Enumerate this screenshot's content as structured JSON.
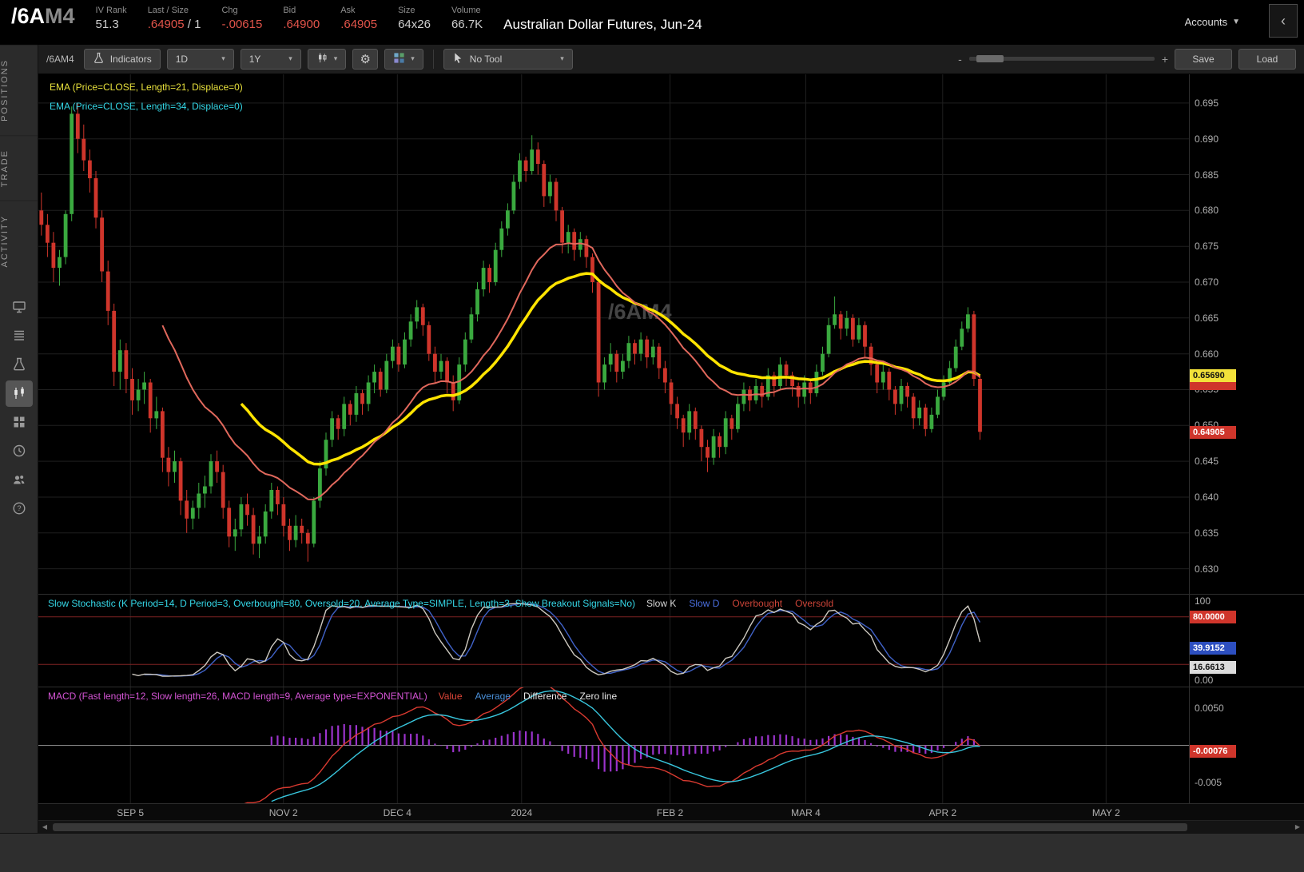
{
  "header": {
    "symbol": "/6A",
    "symbol_month": "M4",
    "fields": [
      {
        "label": "IV Rank",
        "value": "51.3",
        "color": "#cfcfcf"
      },
      {
        "label": "Last / Size",
        "value": ".64905",
        "suffix": " / 1",
        "color": "#e2544a"
      },
      {
        "label": "Chg",
        "value": "-.00615",
        "color": "#e2544a"
      },
      {
        "label": "Bid",
        "value": ".64900",
        "color": "#e2544a"
      },
      {
        "label": "Ask",
        "value": ".64905",
        "color": "#e2544a"
      },
      {
        "label": "Size",
        "value": "64x26",
        "color": "#cfcfcf"
      },
      {
        "label": "Volume",
        "value": "66.7K",
        "color": "#cfcfcf"
      }
    ],
    "title": "Australian Dollar Futures, Jun-24",
    "accounts_label": "Accounts"
  },
  "sidebar": {
    "tabs": [
      {
        "label": "POSITIONS"
      },
      {
        "label": "TRADE"
      },
      {
        "label": "ACTIVITY"
      }
    ],
    "icons": [
      {
        "name": "monitor-icon",
        "active": false
      },
      {
        "name": "ladder-icon",
        "active": false
      },
      {
        "name": "beaker-icon",
        "active": false
      },
      {
        "name": "chart-icon",
        "active": true
      },
      {
        "name": "grid-icon",
        "active": false
      },
      {
        "name": "clock-icon",
        "active": false
      },
      {
        "name": "users-icon",
        "active": false
      },
      {
        "name": "help-icon",
        "active": false
      }
    ]
  },
  "toolbar": {
    "symbol": "/6AM4",
    "indicators_label": "Indicators",
    "timeframe": "1D",
    "range": "1Y",
    "tool_label": "No Tool",
    "zoom_out_label": "-",
    "zoom_in_label": "+",
    "save_label": "Save",
    "load_label": "Load"
  },
  "studies": {
    "ema1_label": "EMA (Price=CLOSE, Length=21, Displace=0)",
    "ema1_color": "#e8e13c",
    "ema2_label": "EMA (Price=CLOSE, Length=34, Displace=0)",
    "ema2_color": "#35d8e8",
    "stoch_label": "Slow Stochastic (K Period=14, D Period=3, Overbought=80, Oversold=20, Average Type=SIMPLE, Length=3, Show Breakout Signals=No)",
    "stoch_color": "#35d8e8",
    "stoch_legend": [
      {
        "label": "Slow K",
        "color": "#d8d8d8"
      },
      {
        "label": "Slow D",
        "color": "#4a6fe0"
      },
      {
        "label": "Overbought",
        "color": "#cc4438"
      },
      {
        "label": "Oversold",
        "color": "#cc4438"
      }
    ],
    "macd_label": "MACD (Fast length=12, Slow length=26, MACD length=9, Average type=EXPONENTIAL)",
    "macd_color": "#d454d4",
    "macd_legend": [
      {
        "label": "Value",
        "color": "#de4538"
      },
      {
        "label": "Average",
        "color": "#4a90d9"
      },
      {
        "label": "Difference",
        "color": "#e8e8e8"
      },
      {
        "label": "Zero line",
        "color": "#e8e8e8"
      }
    ]
  },
  "chart_data": {
    "type": "candlestick",
    "symbol": "/6AM4",
    "title": "Australian Dollar Futures, Jun-24",
    "watermark": "/6AM4",
    "timeframe": "1D",
    "range": "1Y",
    "slots": 190,
    "y_min": 0.6265,
    "y_max": 0.699,
    "y_ticks": [
      "0.695",
      "0.690",
      "0.685",
      "0.680",
      "0.675",
      "0.670",
      "0.665",
      "0.660",
      "0.655",
      "0.650",
      "0.645",
      "0.640",
      "0.635",
      "0.630"
    ],
    "x_labels": [
      {
        "text": "SEP 5",
        "pos": 0.08
      },
      {
        "text": "NOV 2",
        "pos": 0.213
      },
      {
        "text": "DEC 4",
        "pos": 0.312
      },
      {
        "text": "2024",
        "pos": 0.42
      },
      {
        "text": "FEB 2",
        "pos": 0.549
      },
      {
        "text": "MAR 4",
        "pos": 0.667
      },
      {
        "text": "APR 2",
        "pos": 0.786
      },
      {
        "text": "MAY 2",
        "pos": 0.928
      }
    ],
    "colors": {
      "up": "#3aa93f",
      "down": "#cf352b",
      "ema_fast": "#e0685c",
      "ema_slow": "#ffe400",
      "slow_k": "#cdc9c0",
      "slow_d": "#4062c8",
      "ob_os": "#7e2222",
      "macd_value": "#d93a30",
      "macd_avg": "#38c6dd",
      "macd_diff": "#9b33cc"
    },
    "indicators": {
      "ema_fast_len": 21,
      "ema_slow_len": 34,
      "stoch_k": 14,
      "stoch_d": 3,
      "stoch_smooth": 3,
      "stoch_ob": 80,
      "stoch_os": 20,
      "macd_fast": 12,
      "macd_slow": 26,
      "macd_signal": 9
    },
    "price_badges": [
      {
        "text": "",
        "bg": "#cf352b",
        "fg": "#fff",
        "v": 0.6558
      },
      {
        "text": "0.65690",
        "bg": "#f3e23a",
        "fg": "#111",
        "v": 0.6569
      },
      {
        "text": "0.64905",
        "bg": "#cf352b",
        "fg": "#fff",
        "v": 0.64905
      }
    ],
    "stoch_axis": [
      {
        "text": "100",
        "v": 100
      },
      {
        "text": "0.00",
        "v": 0
      }
    ],
    "stoch_badges": [
      {
        "text": "80.0000",
        "bg": "#cf352b",
        "fg": "#fff",
        "v": 80
      },
      {
        "text": "39.9152",
        "bg": "#2d4fc0",
        "fg": "#fff",
        "v": 39.9152
      },
      {
        "text": "16.6613",
        "bg": "#dcdcdc",
        "fg": "#111",
        "v": 16.6613
      }
    ],
    "macd_axis": [
      {
        "text": "0.0050",
        "v": 0.005
      },
      {
        "text": "-0.005",
        "v": -0.005
      }
    ],
    "macd_badges": [
      {
        "text": "-0.00076",
        "bg": "#cf352b",
        "fg": "#fff",
        "v": -0.00076
      }
    ],
    "candles": [
      [
        0.68,
        0.6825,
        0.6765,
        0.678
      ],
      [
        0.678,
        0.6795,
        0.6735,
        0.6755
      ],
      [
        0.6755,
        0.677,
        0.67,
        0.672
      ],
      [
        0.672,
        0.6745,
        0.6695,
        0.6735
      ],
      [
        0.6735,
        0.68,
        0.6725,
        0.6795
      ],
      [
        0.6795,
        0.6945,
        0.6785,
        0.6935
      ],
      [
        0.6935,
        0.695,
        0.688,
        0.69
      ],
      [
        0.69,
        0.692,
        0.6855,
        0.687
      ],
      [
        0.687,
        0.6885,
        0.6825,
        0.6845
      ],
      [
        0.6845,
        0.6855,
        0.6775,
        0.679
      ],
      [
        0.679,
        0.68,
        0.67,
        0.6715
      ],
      [
        0.6715,
        0.673,
        0.664,
        0.666
      ],
      [
        0.666,
        0.667,
        0.6555,
        0.6575
      ],
      [
        0.6575,
        0.662,
        0.655,
        0.6605
      ],
      [
        0.6605,
        0.6615,
        0.6545,
        0.6565
      ],
      [
        0.6565,
        0.658,
        0.6515,
        0.6535
      ],
      [
        0.6535,
        0.6565,
        0.652,
        0.655
      ],
      [
        0.655,
        0.6575,
        0.653,
        0.656
      ],
      [
        0.656,
        0.6565,
        0.649,
        0.651
      ],
      [
        0.651,
        0.654,
        0.6495,
        0.652
      ],
      [
        0.652,
        0.6525,
        0.6435,
        0.6455
      ],
      [
        0.6455,
        0.647,
        0.6415,
        0.6435
      ],
      [
        0.6435,
        0.6465,
        0.642,
        0.645
      ],
      [
        0.645,
        0.6455,
        0.6375,
        0.6395
      ],
      [
        0.6395,
        0.641,
        0.635,
        0.637
      ],
      [
        0.637,
        0.6395,
        0.6355,
        0.6385
      ],
      [
        0.6385,
        0.642,
        0.637,
        0.6405
      ],
      [
        0.6405,
        0.643,
        0.6385,
        0.6415
      ],
      [
        0.6415,
        0.646,
        0.6405,
        0.645
      ],
      [
        0.645,
        0.6465,
        0.642,
        0.6435
      ],
      [
        0.6435,
        0.6445,
        0.637,
        0.6385
      ],
      [
        0.6385,
        0.6395,
        0.633,
        0.6345
      ],
      [
        0.6345,
        0.637,
        0.6325,
        0.6355
      ],
      [
        0.6355,
        0.64,
        0.6345,
        0.639
      ],
      [
        0.639,
        0.6405,
        0.636,
        0.6375
      ],
      [
        0.6375,
        0.6385,
        0.632,
        0.6335
      ],
      [
        0.6335,
        0.636,
        0.6315,
        0.6345
      ],
      [
        0.6345,
        0.639,
        0.6335,
        0.638
      ],
      [
        0.638,
        0.642,
        0.637,
        0.641
      ],
      [
        0.641,
        0.6415,
        0.6375,
        0.639
      ],
      [
        0.639,
        0.64,
        0.6345,
        0.636
      ],
      [
        0.636,
        0.637,
        0.6325,
        0.634
      ],
      [
        0.634,
        0.6375,
        0.633,
        0.636
      ],
      [
        0.636,
        0.637,
        0.6335,
        0.635
      ],
      [
        0.635,
        0.6355,
        0.631,
        0.6335
      ],
      [
        0.6335,
        0.64,
        0.633,
        0.6395
      ],
      [
        0.6395,
        0.645,
        0.6385,
        0.644
      ],
      [
        0.644,
        0.649,
        0.643,
        0.648
      ],
      [
        0.648,
        0.652,
        0.647,
        0.651
      ],
      [
        0.651,
        0.6515,
        0.648,
        0.6495
      ],
      [
        0.6495,
        0.654,
        0.6485,
        0.653
      ],
      [
        0.653,
        0.6535,
        0.65,
        0.6515
      ],
      [
        0.6515,
        0.6555,
        0.6505,
        0.6545
      ],
      [
        0.6545,
        0.655,
        0.6515,
        0.653
      ],
      [
        0.653,
        0.657,
        0.652,
        0.656
      ],
      [
        0.656,
        0.6585,
        0.6545,
        0.6575
      ],
      [
        0.6575,
        0.658,
        0.654,
        0.655
      ],
      [
        0.655,
        0.66,
        0.6545,
        0.659
      ],
      [
        0.659,
        0.662,
        0.658,
        0.661
      ],
      [
        0.661,
        0.6615,
        0.6575,
        0.6585
      ],
      [
        0.6585,
        0.663,
        0.658,
        0.662
      ],
      [
        0.662,
        0.6655,
        0.661,
        0.6645
      ],
      [
        0.6645,
        0.6675,
        0.6635,
        0.6665
      ],
      [
        0.6665,
        0.667,
        0.6625,
        0.664
      ],
      [
        0.664,
        0.6645,
        0.659,
        0.66
      ],
      [
        0.66,
        0.661,
        0.656,
        0.6575
      ],
      [
        0.6575,
        0.66,
        0.6565,
        0.659
      ],
      [
        0.659,
        0.6595,
        0.6545,
        0.656
      ],
      [
        0.656,
        0.657,
        0.652,
        0.6535
      ],
      [
        0.6535,
        0.6595,
        0.653,
        0.6585
      ],
      [
        0.6585,
        0.663,
        0.6575,
        0.662
      ],
      [
        0.662,
        0.6665,
        0.6615,
        0.6655
      ],
      [
        0.6655,
        0.67,
        0.6645,
        0.669
      ],
      [
        0.669,
        0.673,
        0.668,
        0.672
      ],
      [
        0.672,
        0.6725,
        0.6685,
        0.67
      ],
      [
        0.67,
        0.6755,
        0.6695,
        0.6745
      ],
      [
        0.6745,
        0.6785,
        0.6735,
        0.6775
      ],
      [
        0.6775,
        0.681,
        0.6765,
        0.68
      ],
      [
        0.68,
        0.685,
        0.6795,
        0.684
      ],
      [
        0.684,
        0.688,
        0.683,
        0.687
      ],
      [
        0.687,
        0.6875,
        0.684,
        0.6855
      ],
      [
        0.6855,
        0.6905,
        0.685,
        0.6885
      ],
      [
        0.6885,
        0.6895,
        0.685,
        0.6865
      ],
      [
        0.6865,
        0.687,
        0.6805,
        0.682
      ],
      [
        0.682,
        0.685,
        0.681,
        0.684
      ],
      [
        0.684,
        0.6845,
        0.6785,
        0.68
      ],
      [
        0.68,
        0.6805,
        0.674,
        0.6755
      ],
      [
        0.6755,
        0.678,
        0.674,
        0.677
      ],
      [
        0.677,
        0.6775,
        0.673,
        0.6745
      ],
      [
        0.6745,
        0.677,
        0.6735,
        0.676
      ],
      [
        0.676,
        0.6765,
        0.672,
        0.6735
      ],
      [
        0.6735,
        0.674,
        0.6685,
        0.67
      ],
      [
        0.67,
        0.6705,
        0.654,
        0.656
      ],
      [
        0.656,
        0.6595,
        0.655,
        0.6585
      ],
      [
        0.6585,
        0.6615,
        0.6575,
        0.66
      ],
      [
        0.66,
        0.6605,
        0.656,
        0.6575
      ],
      [
        0.6575,
        0.66,
        0.6565,
        0.659
      ],
      [
        0.659,
        0.6625,
        0.658,
        0.6615
      ],
      [
        0.6615,
        0.662,
        0.6585,
        0.66
      ],
      [
        0.66,
        0.663,
        0.659,
        0.662
      ],
      [
        0.662,
        0.6625,
        0.658,
        0.6595
      ],
      [
        0.6595,
        0.662,
        0.6585,
        0.661
      ],
      [
        0.661,
        0.6615,
        0.6565,
        0.658
      ],
      [
        0.658,
        0.659,
        0.6545,
        0.656
      ],
      [
        0.656,
        0.6565,
        0.6515,
        0.653
      ],
      [
        0.653,
        0.654,
        0.6495,
        0.651
      ],
      [
        0.651,
        0.6515,
        0.647,
        0.649
      ],
      [
        0.649,
        0.653,
        0.648,
        0.652
      ],
      [
        0.652,
        0.6525,
        0.648,
        0.6495
      ],
      [
        0.6495,
        0.65,
        0.645,
        0.647
      ],
      [
        0.647,
        0.648,
        0.6435,
        0.6455
      ],
      [
        0.6455,
        0.6495,
        0.6445,
        0.6485
      ],
      [
        0.6485,
        0.649,
        0.6455,
        0.647
      ],
      [
        0.647,
        0.652,
        0.646,
        0.651
      ],
      [
        0.651,
        0.6515,
        0.648,
        0.6495
      ],
      [
        0.6495,
        0.654,
        0.649,
        0.653
      ],
      [
        0.653,
        0.656,
        0.652,
        0.655
      ],
      [
        0.655,
        0.6555,
        0.652,
        0.6535
      ],
      [
        0.6535,
        0.6565,
        0.653,
        0.6555
      ],
      [
        0.6555,
        0.656,
        0.6525,
        0.654
      ],
      [
        0.654,
        0.658,
        0.6535,
        0.657
      ],
      [
        0.657,
        0.6575,
        0.654,
        0.6555
      ],
      [
        0.6555,
        0.6595,
        0.655,
        0.6585
      ],
      [
        0.6585,
        0.659,
        0.6555,
        0.657
      ],
      [
        0.657,
        0.6575,
        0.654,
        0.6555
      ],
      [
        0.6555,
        0.656,
        0.6525,
        0.654
      ],
      [
        0.654,
        0.657,
        0.653,
        0.656
      ],
      [
        0.656,
        0.6565,
        0.653,
        0.6545
      ],
      [
        0.6545,
        0.6585,
        0.654,
        0.6575
      ],
      [
        0.6575,
        0.661,
        0.657,
        0.66
      ],
      [
        0.66,
        0.665,
        0.6595,
        0.664
      ],
      [
        0.664,
        0.668,
        0.6635,
        0.6655
      ],
      [
        0.6655,
        0.666,
        0.662,
        0.6635
      ],
      [
        0.6635,
        0.666,
        0.6625,
        0.665
      ],
      [
        0.665,
        0.6655,
        0.661,
        0.662
      ],
      [
        0.662,
        0.665,
        0.6615,
        0.664
      ],
      [
        0.664,
        0.6645,
        0.6595,
        0.661
      ],
      [
        0.661,
        0.6615,
        0.657,
        0.6585
      ],
      [
        0.6585,
        0.659,
        0.6545,
        0.656
      ],
      [
        0.656,
        0.6585,
        0.655,
        0.6575
      ],
      [
        0.6575,
        0.658,
        0.6535,
        0.655
      ],
      [
        0.655,
        0.6555,
        0.6515,
        0.653
      ],
      [
        0.653,
        0.6565,
        0.652,
        0.6555
      ],
      [
        0.6555,
        0.656,
        0.6525,
        0.654
      ],
      [
        0.654,
        0.6545,
        0.6495,
        0.651
      ],
      [
        0.651,
        0.6535,
        0.65,
        0.6525
      ],
      [
        0.6525,
        0.653,
        0.6485,
        0.6495
      ],
      [
        0.6495,
        0.6525,
        0.649,
        0.6515
      ],
      [
        0.6515,
        0.655,
        0.651,
        0.654
      ],
      [
        0.654,
        0.657,
        0.6535,
        0.656
      ],
      [
        0.656,
        0.659,
        0.6555,
        0.658
      ],
      [
        0.658,
        0.662,
        0.6575,
        0.661
      ],
      [
        0.661,
        0.6645,
        0.6605,
        0.6635
      ],
      [
        0.6635,
        0.6665,
        0.663,
        0.6655
      ],
      [
        0.6655,
        0.666,
        0.6555,
        0.6565
      ],
      [
        0.6565,
        0.657,
        0.648,
        0.6491
      ]
    ]
  }
}
